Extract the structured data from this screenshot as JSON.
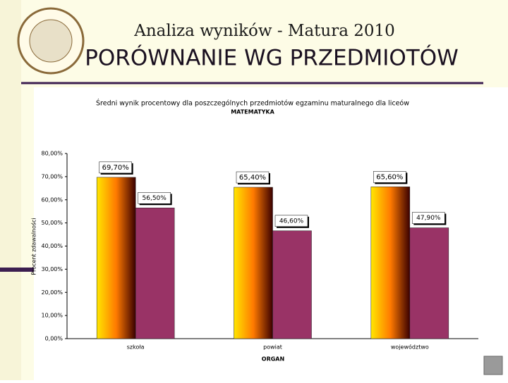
{
  "slide": {
    "title": "Analiza wyników  - Matura 2010",
    "heading": "PORÓWNANIE WG PRZEDMIOTÓW"
  },
  "chart_data": {
    "type": "bar",
    "title": "Średni wynik procentowy dla poszczególnych przedmiotów egzaminu maturalnego dla liceów",
    "subtitle": "MATEMATYKA",
    "x_label": "ORGAN",
    "y_label": "Procent zdawalności",
    "categories": [
      "szkoła",
      "powiat",
      "województwo"
    ],
    "series": [
      {
        "color": "#ff7a00",
        "values": [
          69.7,
          65.4,
          65.6
        ],
        "value_labels": [
          "69,70%",
          "65,40%",
          "65,60%"
        ]
      },
      {
        "color": "#993366",
        "values": [
          56.5,
          46.6,
          47.9
        ],
        "value_labels": [
          "56,50%",
          "46,60%",
          "47,90%"
        ]
      }
    ],
    "ylim": [
      0,
      80
    ],
    "yticks": [
      {
        "value": 0,
        "label": "0,00%"
      },
      {
        "value": 10,
        "label": "10,00%"
      },
      {
        "value": 20,
        "label": "20,00%"
      },
      {
        "value": 30,
        "label": "30,00%"
      },
      {
        "value": 40,
        "label": "40,00%"
      },
      {
        "value": 50,
        "label": "50,00%"
      },
      {
        "value": 60,
        "label": "60,00%"
      },
      {
        "value": 70,
        "label": "70,00%"
      },
      {
        "value": 80,
        "label": "80,00%"
      }
    ],
    "grid": false
  }
}
